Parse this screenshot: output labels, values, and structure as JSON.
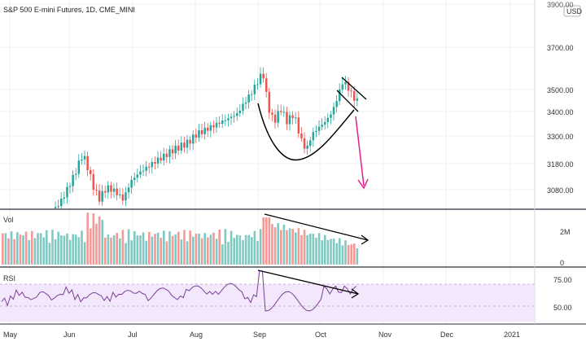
{
  "header": {
    "title": "S&P 500 E-mini Futures, 1D, CME_MINI",
    "currency_badge": "USD"
  },
  "price_axis": {
    "labels": [
      "3900.00",
      "3700.00",
      "3500.00",
      "3400.00",
      "3300.00",
      "3180.00",
      "3080.00"
    ]
  },
  "volume_pane": {
    "label": "Vol",
    "axis_labels": [
      "2M",
      "0"
    ]
  },
  "rsi_pane": {
    "label": "RSI",
    "axis_labels": [
      "75.00",
      "50.00"
    ]
  },
  "time_axis": {
    "labels": [
      "May",
      "Jun",
      "Jul",
      "Aug",
      "Sep",
      "Oct",
      "Nov",
      "Dec",
      "2021"
    ]
  },
  "colors": {
    "up": "#26a69a",
    "down": "#ef5350",
    "vol_up": "#80c9c2",
    "vol_down": "#f19a98",
    "rsi_line": "#7b3f98",
    "rsi_band": "#f3e8fb",
    "arrow": "#e91e8c",
    "drawing": "#000000",
    "grid": "#eef0f2"
  },
  "chart_data": {
    "type": "candlestick",
    "title": "S&P 500 E-mini Futures, 1D, CME_MINI",
    "price_ticks": [
      3900,
      3700,
      3500,
      3400,
      3300,
      3180,
      3080
    ],
    "x_labels": [
      "May",
      "Jun",
      "Jul",
      "Aug",
      "Sep",
      "Oct",
      "Nov",
      "Dec",
      "2021"
    ],
    "rsi_levels": [
      75,
      50
    ],
    "volume_ticks": [
      "2M",
      "0"
    ]
  }
}
